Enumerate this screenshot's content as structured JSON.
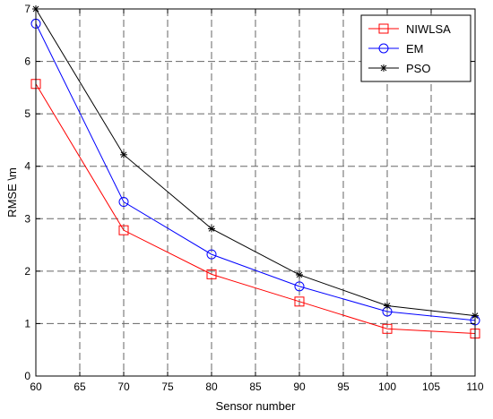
{
  "chart_data": {
    "type": "line",
    "title": "",
    "xlabel": "Sensor number",
    "ylabel": "RMSE \\m",
    "xlim": [
      60,
      110
    ],
    "ylim": [
      0,
      7
    ],
    "xticks": [
      60,
      65,
      70,
      75,
      80,
      85,
      90,
      95,
      100,
      105,
      110
    ],
    "yticks": [
      0,
      1,
      2,
      3,
      4,
      5,
      6,
      7
    ],
    "grid": true,
    "legend_position": "top-right",
    "x": [
      60,
      70,
      80,
      90,
      100,
      110
    ],
    "series": [
      {
        "name": "NIWLSA",
        "color": "#ff0000",
        "marker": "square",
        "values": [
          5.57,
          2.78,
          1.94,
          1.42,
          0.9,
          0.81
        ]
      },
      {
        "name": "EM",
        "color": "#0000ff",
        "marker": "circle",
        "values": [
          6.72,
          3.32,
          2.32,
          1.71,
          1.23,
          1.06
        ]
      },
      {
        "name": "PSO",
        "color": "#000000",
        "marker": "star",
        "values": [
          7.0,
          4.22,
          2.81,
          1.93,
          1.34,
          1.15
        ]
      }
    ]
  }
}
